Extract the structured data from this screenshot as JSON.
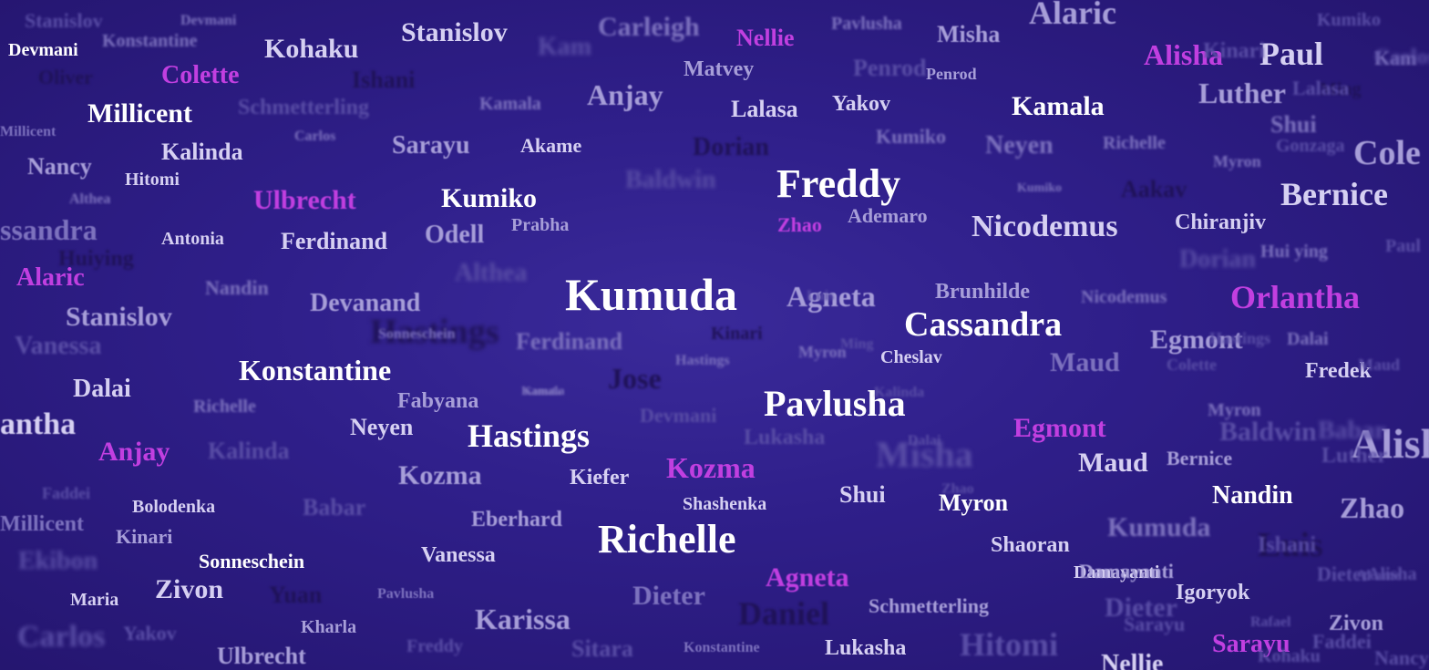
{
  "colors": {
    "background_center": "#3a2a9a",
    "background_edge": "#24156e",
    "accent_violet": "#c13fe0",
    "text_white": "#ffffff"
  },
  "words": [
    "Kumuda",
    "Freddy",
    "Cassandra",
    "Pavlusha",
    "Richelle",
    "Konstantine",
    "Hastings",
    "Kumiko",
    "Millicent",
    "Kamala",
    "Nicodemus",
    "Bernice",
    "Stanislov",
    "Kohaku",
    "Paul",
    "Orlantha",
    "Alisha",
    "Ulbrecht",
    "Colette",
    "Nellie",
    "Alaric",
    "Egmont",
    "Kozma",
    "Agneta",
    "Anjay",
    "Sarayu",
    "Zhao",
    "Alaric",
    "Alisha",
    "Cole",
    "Luther",
    "Misha",
    "Matvey",
    "Anjay",
    "Lalasa",
    "Yakov",
    "Sarayu",
    "Akame",
    "Kalinda",
    "Hitomi",
    "Nancy",
    "Devmani",
    "Antonia",
    "Ferdinand",
    "Odell",
    "Prabha",
    "Ademaro",
    "Chiranjiv",
    "Agneta",
    "Brunhilde",
    "Devanand",
    "Stanislov",
    "Dalai",
    "Fabyana",
    "Neyen",
    "Cheslav",
    "Maud",
    "Egmont",
    "Fredek",
    "Maud",
    "Nandin",
    "Myron",
    "Shui",
    "Kozma",
    "Kiefer",
    "Shashenka",
    "Bolodenka",
    "Kinari",
    "Sonneschein",
    "Zivon",
    "Maria",
    "Vanessa",
    "Eberhard",
    "Karissa",
    "Dieter",
    "Schmetterling",
    "Shaoran",
    "Damayanti",
    "Igoryok",
    "Lukasha",
    "Zhao",
    "Zivon",
    "Kharla",
    "Ulbrecht",
    "Bernice",
    "Carleigh",
    "Pavlusha",
    "Penrod",
    "Shui",
    "Kumuda",
    "Dorian",
    "Neyen",
    "Richelle",
    "Kumiko",
    "Myron",
    "Hastings",
    "Aakav",
    "Sonneschein",
    "Damayanti",
    "Althea",
    "Nandin",
    "Nicodemus",
    "Hui ying",
    "Dalai",
    "Ferdinand",
    "Kumiko",
    "Kamala",
    "Lukasha",
    "Hastings",
    "Myron",
    "Kinari",
    "Richelle",
    "Kalinda",
    "Babar",
    "Faddei",
    "Baldwin",
    "Kamala",
    "Devmani",
    "Carlos",
    "Konstantine",
    "Oliver",
    "Yakov",
    "Sitara",
    "Konstantine",
    "Freddy",
    "Pavlusha",
    "Hitomi",
    "Rafael",
    "Vanessa",
    "Stanislov",
    "Devmani",
    "Ishani",
    "Dieter",
    "Jose",
    "Misha",
    "Daniel",
    "Luis",
    "Nellie",
    "Yuan",
    "Kam",
    "Ming",
    "Myron",
    "Hastings",
    "Kamala",
    "Babar",
    "Carlos",
    "Millicent",
    "Millicent",
    "ssandra",
    "antha",
    "Dieter",
    "Penrod",
    "Schmetterling",
    "Kumiko",
    "Althea",
    "Faddei",
    "Huiying",
    "Nancy",
    "Carlos",
    "Kam",
    "Baldwin",
    "Ekibon",
    "Gonzaga",
    "Dorian",
    "Akame",
    "Sarayu",
    "Luther",
    "Lalasa",
    "Kinari",
    "Ishani",
    "Maud",
    "Colette",
    "Kohaku",
    "Alisha",
    "Paul",
    "Luis",
    "Ming",
    "Kalinda",
    "Dalai",
    "Zhao"
  ]
}
